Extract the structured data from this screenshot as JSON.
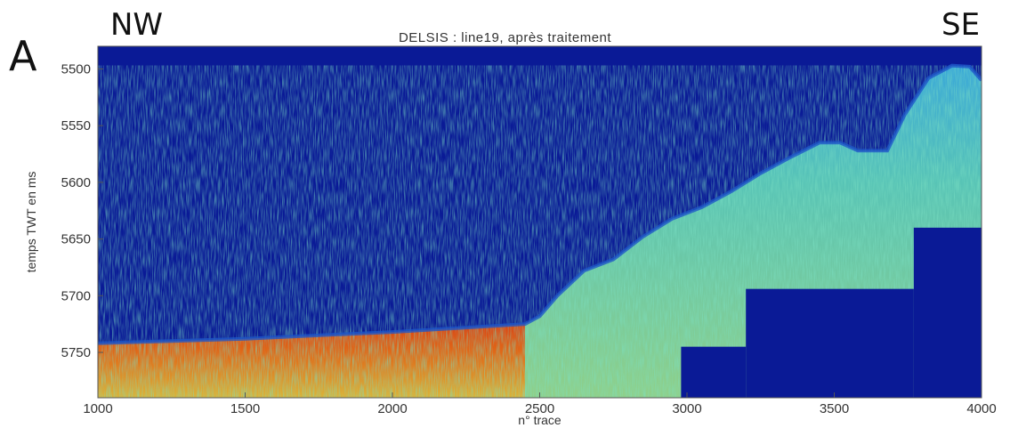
{
  "figure": {
    "panel_letter": "A",
    "left_direction": "NW",
    "right_direction": "SE"
  },
  "chart_data": {
    "type": "heatmap",
    "title": "DELSIS : line19, après traitement",
    "xlabel": "n° trace",
    "ylabel": "temps TWT en ms",
    "xlim": [
      1000,
      4000
    ],
    "ylim": [
      5790,
      5480
    ],
    "y_inverted": true,
    "x_ticks": [
      1000,
      1500,
      2000,
      2500,
      3000,
      3500,
      4000
    ],
    "y_ticks": [
      5500,
      5550,
      5600,
      5650,
      5700,
      5750
    ],
    "colormap": "jet",
    "background_color": "#0a1a96",
    "seafloor_profile": [
      [
        1000,
        5742
      ],
      [
        1500,
        5738
      ],
      [
        2000,
        5732
      ],
      [
        2450,
        5725
      ],
      [
        2500,
        5718
      ],
      [
        2560,
        5700
      ],
      [
        2650,
        5678
      ],
      [
        2750,
        5668
      ],
      [
        2850,
        5648
      ],
      [
        2950,
        5632
      ],
      [
        3050,
        5622
      ],
      [
        3150,
        5608
      ],
      [
        3250,
        5592
      ],
      [
        3350,
        5578
      ],
      [
        3450,
        5565
      ],
      [
        3520,
        5565
      ],
      [
        3580,
        5572
      ],
      [
        3680,
        5572
      ],
      [
        3740,
        5540
      ],
      [
        3820,
        5508
      ],
      [
        3900,
        5497
      ],
      [
        3960,
        5498
      ],
      [
        4000,
        5510
      ]
    ],
    "blanked_regions": [
      {
        "x": [
          2980,
          3200
        ],
        "y": [
          5745,
          5790
        ]
      },
      {
        "x": [
          3200,
          3770
        ],
        "y": [
          5694,
          5790
        ]
      },
      {
        "x": [
          3770,
          4000
        ],
        "y": [
          5640,
          5790
        ]
      }
    ]
  }
}
